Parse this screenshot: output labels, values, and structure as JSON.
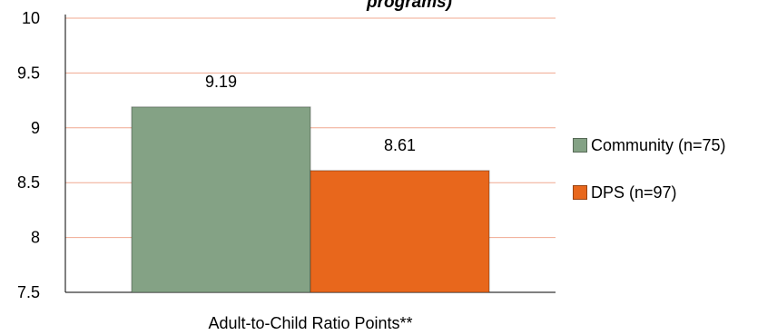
{
  "chart_data": {
    "type": "bar",
    "title": "programs)",
    "categories": [
      "Adult-to-Child Ratio Points**"
    ],
    "series": [
      {
        "name": "Community (n=75)",
        "values": [
          9.19
        ],
        "color": "#84a285",
        "value_label": "9.19"
      },
      {
        "name": "DPS (n=97)",
        "values": [
          8.61
        ],
        "color": "#e8671c",
        "value_label": "8.61"
      }
    ],
    "ylim": [
      7.5,
      10
    ],
    "yticks": [
      7.5,
      8,
      8.5,
      9,
      9.5,
      10
    ],
    "ytick_labels": [
      "7.5",
      "8",
      "8.5",
      "9",
      "9.5",
      "10"
    ],
    "xlabel": "",
    "ylabel": "",
    "grid": true,
    "grid_color": "#f0a890",
    "legend_position": "right"
  }
}
